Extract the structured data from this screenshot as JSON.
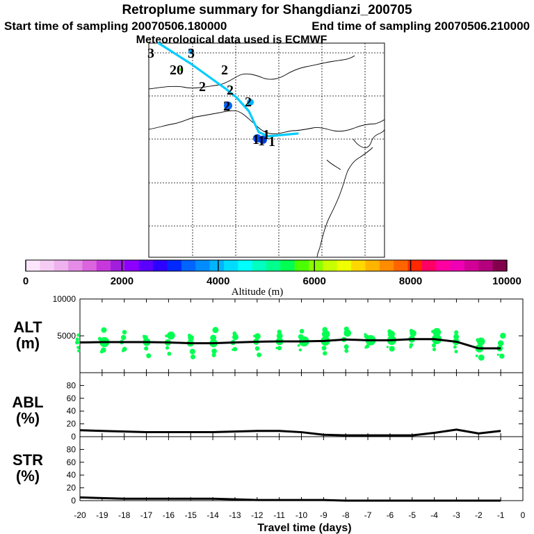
{
  "header": {
    "title": "Retroplume summary for Shangdianzi_200705",
    "start": "Start time of sampling 20070506.180000",
    "end": "End time of sampling 20070506.210000",
    "met": "Meteorological data used is ECMWF"
  },
  "colorbar": {
    "label": "Altitude (m)",
    "ticks": [
      "0",
      "2000",
      "4000",
      "6000",
      "8000",
      "10000"
    ],
    "colors": [
      "#fde6fb",
      "#f5cdf4",
      "#eeb2ee",
      "#e58ce6",
      "#dc64de",
      "#c638dc",
      "#a01edc",
      "#8c00ff",
      "#5a00ff",
      "#2d00ff",
      "#0028ff",
      "#0064ff",
      "#008cff",
      "#00b4ff",
      "#00dcff",
      "#00ffff",
      "#00ffc0",
      "#00ff8c",
      "#00ff50",
      "#4bff00",
      "#8cff00",
      "#c8ff00",
      "#f0ff00",
      "#ffd800",
      "#ffb400",
      "#ff8c00",
      "#ff6400",
      "#ff2800",
      "#ff0064",
      "#ff00a0",
      "#f000b4",
      "#d20096",
      "#b4007d",
      "#82004b"
    ]
  },
  "map_labels": [
    {
      "text": "3",
      "color": "#00ffff"
    },
    {
      "text": "3",
      "color": "#00e0ff"
    },
    {
      "text": "20",
      "color": "#000000"
    },
    {
      "text": "2",
      "color": "#00ffc0"
    },
    {
      "text": "2",
      "color": "#00ffff"
    },
    {
      "text": "2",
      "color": "#00ffff"
    },
    {
      "text": "2",
      "color": "#0070ff"
    },
    {
      "text": "2",
      "color": "#00c0ff"
    },
    {
      "text": "1",
      "color": "#000000"
    },
    {
      "text": "1",
      "color": "#00ffff"
    },
    {
      "text": "1",
      "color": "#0050ff"
    },
    {
      "text": "1",
      "color": "#000000"
    }
  ],
  "panel_labels": {
    "alt": [
      "ALT",
      "(m)"
    ],
    "abl": [
      "ABL",
      "(%)"
    ],
    "str": [
      "STR",
      "(%)"
    ]
  },
  "chart_data": [
    {
      "type": "line",
      "name": "ALT",
      "xlabel": "Travel time (days)",
      "ylabel": "ALT (m)",
      "xlim": [
        -20,
        0
      ],
      "ylim": [
        0,
        10000
      ],
      "yticks": [
        5000,
        10000
      ],
      "x": [
        -20,
        -19,
        -18,
        -17,
        -16,
        -15,
        -14,
        -13,
        -12,
        -11,
        -10,
        -9,
        -8,
        -7,
        -6,
        -5,
        -4,
        -3,
        -2,
        -1
      ],
      "y": [
        4100,
        4150,
        4150,
        4150,
        4100,
        4000,
        4000,
        4100,
        4200,
        4250,
        4250,
        4300,
        4500,
        4400,
        4400,
        4550,
        4550,
        4200,
        3300,
        3300
      ],
      "scatter_note": "green dots show spread of plume particle altitudes",
      "scatter_color": "#00ff50"
    },
    {
      "type": "line",
      "name": "ABL",
      "ylabel": "ABL (%)",
      "xlim": [
        -20,
        0
      ],
      "ylim": [
        0,
        100
      ],
      "yticks": [
        0,
        20,
        40,
        60,
        80
      ],
      "x": [
        -20,
        -19,
        -18,
        -17,
        -16,
        -15,
        -14,
        -13,
        -12,
        -11,
        -10,
        -9,
        -8,
        -7,
        -6,
        -5,
        -4,
        -3,
        -2,
        -1
      ],
      "y": [
        10,
        9,
        8,
        7,
        7,
        7,
        7,
        8,
        9,
        9,
        7,
        3,
        2,
        2,
        2,
        2,
        6,
        11,
        5,
        9
      ]
    },
    {
      "type": "line",
      "name": "STR",
      "ylabel": "STR (%)",
      "xlabel": "Travel time (days)",
      "xlim": [
        -20,
        0
      ],
      "ylim": [
        0,
        100
      ],
      "yticks": [
        0,
        20,
        40,
        60,
        80
      ],
      "xticks": [
        "-20",
        "-19",
        "-18",
        "-17",
        "-16",
        "-15",
        "-14",
        "-13",
        "-12",
        "-11",
        "-10",
        "-9",
        "-8",
        "-7",
        "-6",
        "-5",
        "-4",
        "-3",
        "-2",
        "-1",
        "0"
      ],
      "x": [
        -20,
        -19,
        -18,
        -17,
        -16,
        -15,
        -14,
        -13,
        -12,
        -11,
        -10,
        -9,
        -8,
        -7,
        -6,
        -5,
        -4,
        -3,
        -2,
        -1
      ],
      "y": [
        5,
        4,
        3,
        3,
        3,
        3,
        3,
        2,
        1,
        1,
        1,
        1,
        0,
        0,
        0,
        0,
        0,
        0,
        0,
        0
      ]
    }
  ]
}
